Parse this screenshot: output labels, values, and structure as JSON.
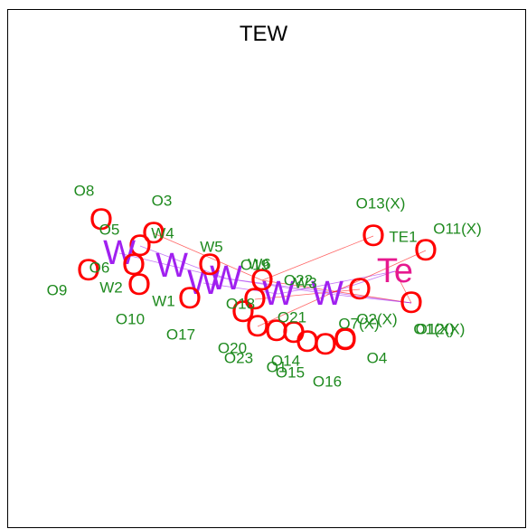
{
  "title": "TEW",
  "colors": {
    "oxygen": "#ff0000",
    "tungsten": "#a020f0",
    "tellurium": "#e6198f",
    "label": "#1f8a1f",
    "frame": "#000000"
  },
  "atoms": [
    {
      "id": "O8",
      "el": "O"
    },
    {
      "id": "O5",
      "el": "O"
    },
    {
      "id": "O3",
      "el": "O"
    },
    {
      "id": "W4",
      "el": "W"
    },
    {
      "id": "O6",
      "el": "O"
    },
    {
      "id": "O9",
      "el": "O"
    },
    {
      "id": "W2",
      "el": "W"
    },
    {
      "id": "W5",
      "el": "W"
    },
    {
      "id": "W1",
      "el": "W"
    },
    {
      "id": "O10",
      "el": "O"
    },
    {
      "id": "O17",
      "el": "O"
    },
    {
      "id": "W6",
      "el": "W"
    },
    {
      "id": "O18",
      "el": "O"
    },
    {
      "id": "O19",
      "el": "O"
    },
    {
      "id": "O22",
      "el": "O"
    },
    {
      "id": "W3",
      "el": "W"
    },
    {
      "id": "O21",
      "el": "O"
    },
    {
      "id": "O20",
      "el": "O"
    },
    {
      "id": "O23",
      "el": "O"
    },
    {
      "id": "O14",
      "el": "O"
    },
    {
      "id": "O1",
      "el": "O"
    },
    {
      "id": "O15",
      "el": "O"
    },
    {
      "id": "O16",
      "el": "O"
    },
    {
      "id": "O7(X)",
      "el": "O"
    },
    {
      "id": "O4",
      "el": "O"
    },
    {
      "id": "O2(X)",
      "el": "O"
    },
    {
      "id": "O1(X)",
      "el": "O"
    },
    {
      "id": "O12(X)",
      "el": "O"
    },
    {
      "id": "O13(X)",
      "el": "O"
    },
    {
      "id": "TE1",
      "el": "Te"
    },
    {
      "id": "O11(X)",
      "el": "O"
    }
  ]
}
